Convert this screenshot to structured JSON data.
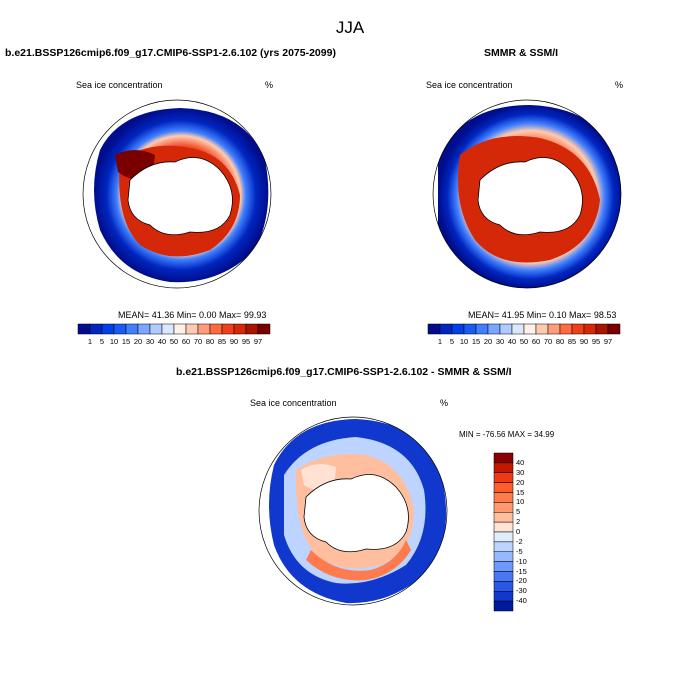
{
  "main_title": "JJA",
  "panel_left": {
    "title": "b.e21.BSSP126cmip6.f09_g17.CMIP6-SSP1-2.6.102 (yrs 2075-2099)",
    "left_label": "Sea ice concentration",
    "unit": "%",
    "stats": "MEAN=  41.36  Min=   0.00  Max=  99.93"
  },
  "panel_right": {
    "title": "SMMR & SSM/I",
    "left_label": "Sea ice concentration",
    "unit": "%",
    "stats": "MEAN=  41.95  Min=   0.10  Max=  98.53"
  },
  "panel_diff": {
    "title": "b.e21.BSSP126cmip6.f09_g17.CMIP6-SSP1-2.6.102 - SMMR & SSM/I",
    "left_label": "Sea ice concentration",
    "unit": "%",
    "stats": "MIN = -76.56 MAX =  34.99"
  },
  "conc_colorbar": {
    "labels": [
      "1",
      "5",
      "10",
      "15",
      "20",
      "30",
      "40",
      "50",
      "60",
      "70",
      "80",
      "85",
      "90",
      "95",
      "97"
    ],
    "colors": [
      "#000d8c",
      "#0026c0",
      "#0040e6",
      "#1a5cf2",
      "#4080ff",
      "#7aa6ff",
      "#b0ccff",
      "#dce8ff",
      "#fff0e8",
      "#ffcbb0",
      "#ff9d7a",
      "#ff6a40",
      "#f0401a",
      "#d42808",
      "#a81400",
      "#7a0000"
    ]
  },
  "diff_colorbar": {
    "labels": [
      "40",
      "30",
      "20",
      "15",
      "10",
      "5",
      "2",
      "0",
      "-2",
      "-5",
      "-10",
      "-15",
      "-20",
      "-30",
      "-40"
    ],
    "colors": [
      "#8c0000",
      "#c21800",
      "#ee3a12",
      "#ff5c2e",
      "#ff7a4c",
      "#ff9a70",
      "#ffbf9e",
      "#ffe2d4",
      "#e0ecff",
      "#bcd4ff",
      "#96b8ff",
      "#6d98ff",
      "#4a78f2",
      "#2a58e6",
      "#1038cc",
      "#001a9c"
    ]
  }
}
